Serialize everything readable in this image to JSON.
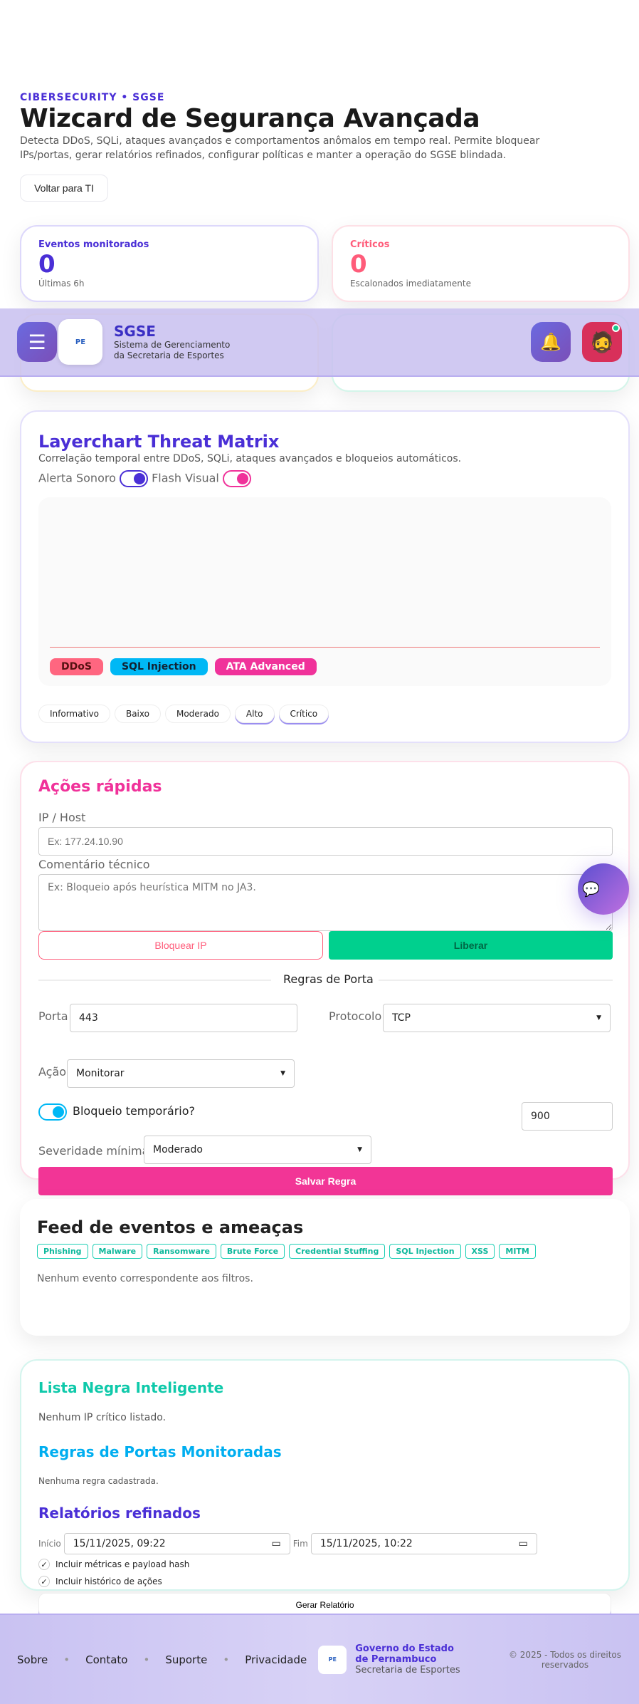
{
  "hero": {
    "eyebrow": "CIBERSECURITY • SGSE",
    "title": "Wizcard de Segurança Avançada",
    "description": "Detecta DDoS, SQLi, ataques avançados e comportamentos anômalos em tempo real. Permite bloquear IPs/portas, gerar relatórios refinados, configurar políticas e manter a operação do SGSE blindada.",
    "back_label": "Voltar para TI"
  },
  "stats": [
    {
      "label": "Eventos monitorados",
      "value": "0",
      "sub": "Últimas 6h",
      "color": "#4a2fd6"
    },
    {
      "label": "Críticos",
      "value": "0",
      "sub": "Escalonados imediatamente",
      "color": "#ff5c7a"
    }
  ],
  "header": {
    "app": "SGSE",
    "subtitle": "Sistema de Gerenciamento da Secretaria de Esportes",
    "logo_text": "PERNAMBUCO",
    "icons": [
      "menu-icon",
      "bell-icon",
      "avatar"
    ]
  },
  "matrix": {
    "title": "Layerchart Threat Matrix",
    "subtitle": "Correlação temporal entre DDoS, SQLi, ataques avançados e bloqueios automáticos.",
    "toggles": [
      {
        "label": "Alerta Sonoro",
        "on": true,
        "color": "#4a2fd6"
      },
      {
        "label": "Flash Visual",
        "on": true,
        "color": "#f0329a"
      }
    ],
    "legend": [
      {
        "label": "DDoS",
        "color": "#ff6680"
      },
      {
        "label": "SQL Injection",
        "color": "#00b8f5"
      },
      {
        "label": "ATA Advanced",
        "color": "#f0329a"
      }
    ],
    "severities": [
      "Informativo",
      "Baixo",
      "Moderado",
      "Alto",
      "Crítico"
    ]
  },
  "actions": {
    "title": "Ações rápidas",
    "ip_label": "IP / Host",
    "ip_placeholder": "Ex: 177.24.10.90",
    "comment_label": "Comentário técnico",
    "comment_placeholder": "Ex: Bloqueio após heurística MITM no JA3.",
    "block_label": "Bloquear IP",
    "release_label": "Liberar",
    "rules_title": "Regras de Porta",
    "port_label": "Porta",
    "port_value": "443",
    "protocol_label": "Protocolo",
    "protocol_value": "TCP",
    "action_label": "Ação",
    "action_value": "Monitorar",
    "temp_label": "Bloqueio temporário?",
    "temp_value": "900",
    "severity_label": "Severidade mínima",
    "severity_value": "Moderado",
    "save_label": "Salvar Regra"
  },
  "feed": {
    "title": "Feed de eventos e ameaças",
    "tags": [
      "Phishing",
      "Malware",
      "Ransomware",
      "Brute Force",
      "Credential Stuffing",
      "SQL Injection",
      "XSS",
      "MITM"
    ],
    "empty": "Nenhum evento correspondente aos filtros."
  },
  "blacklist": {
    "title": "Lista Negra Inteligente",
    "empty": "Nenhum IP crítico listado."
  },
  "ports": {
    "title": "Regras de Portas Monitoradas",
    "empty": "Nenhuma regra cadastrada."
  },
  "reports": {
    "title": "Relatórios refinados",
    "start_label": "Início",
    "start_value": "15/11/2025, 09:22",
    "end_label": "Fim",
    "end_value": "15/11/2025, 10:22",
    "opt1": "Incluir métricas e payload hash",
    "opt2": "Incluir histórico de ações",
    "generate_label": "Gerar Relatório"
  },
  "footer": {
    "links": [
      "Sobre",
      "Contato",
      "Suporte",
      "Privacidade"
    ],
    "org": "Governo do Estado de Pernambuco",
    "dept": "Secretaria de Esportes",
    "copyright": "© 2025 - Todos os direitos reservados"
  }
}
